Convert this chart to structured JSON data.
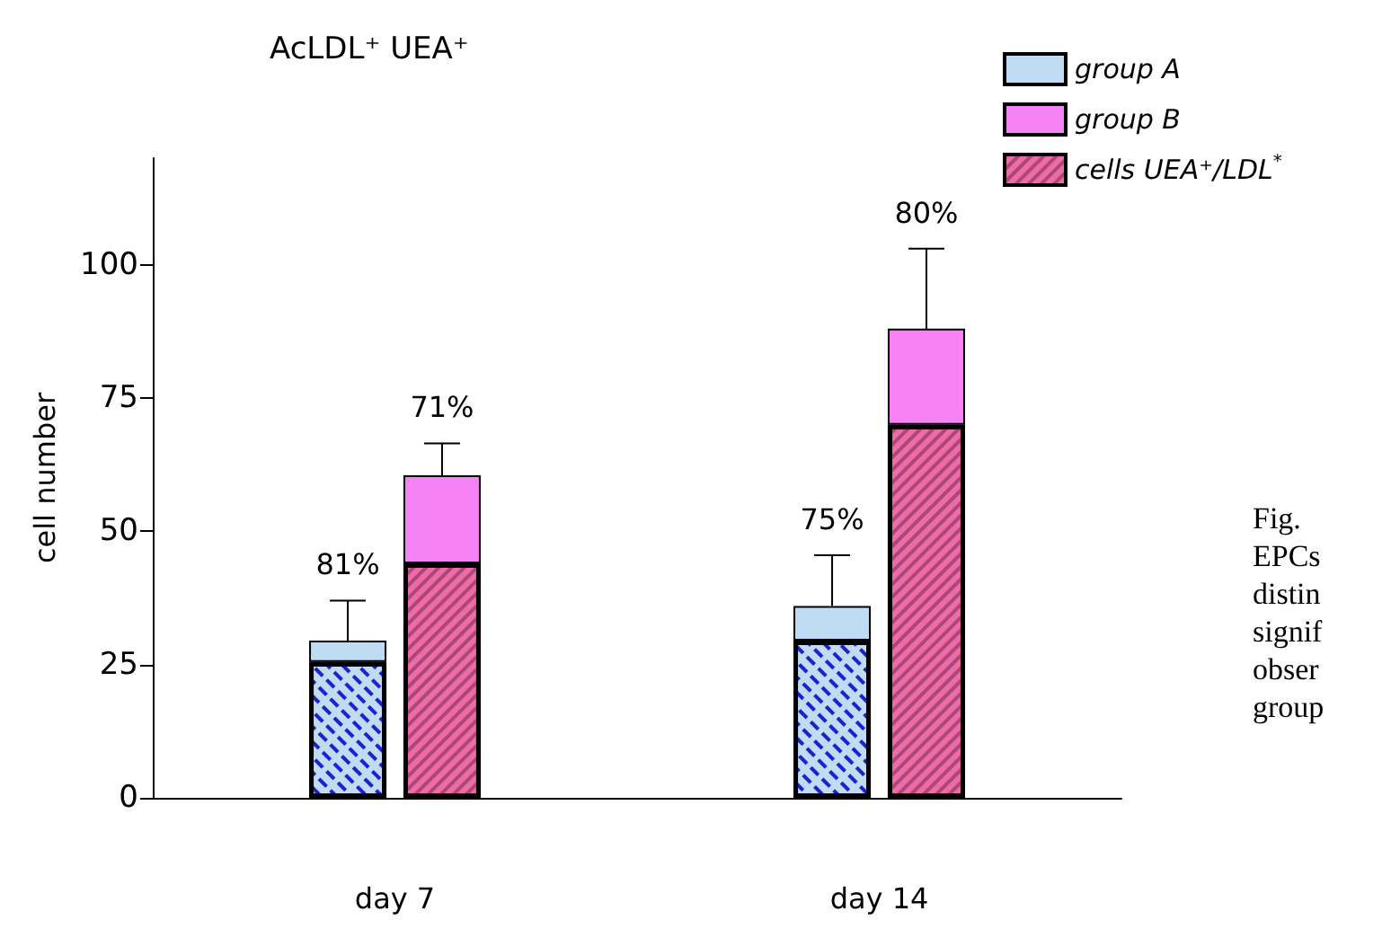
{
  "chart_data": {
    "type": "bar",
    "title": "AcLDL⁺ UEA⁺",
    "ylabel": "cell number",
    "categories": [
      "day 7",
      "day 14"
    ],
    "series": [
      {
        "name": "group A",
        "color": "#c0dcf5",
        "values": [
          4,
          6.5
        ],
        "base": [
          25.5,
          29.5
        ],
        "errors": [
          [
            29.5,
            37
          ],
          [
            36,
            45.5
          ]
        ]
      },
      {
        "name": "group B",
        "color": "#f583f5",
        "values": [
          16.5,
          18
        ],
        "base": [
          44,
          70
        ],
        "errors": [
          [
            60.5,
            66.5
          ],
          [
            88,
            103
          ]
        ]
      },
      {
        "color": "#c0dcf5",
        "values": [
          25.5,
          29.5
        ]
      },
      {
        "name": "cells UEA⁺/LDL$^{*}$",
        "color": "#f06aa8",
        "values": [
          44,
          70
        ]
      }
    ],
    "ylim": [
      0,
      120
    ],
    "yticks": [
      0,
      25,
      50,
      75,
      100
    ],
    "grid": false,
    "legend": "top right",
    "annotations": [
      "81%",
      "71%",
      "75%",
      "80%",
      "Fig.\nEPCs\ndistin\nsignif\nobser\ngroup"
    ]
  }
}
